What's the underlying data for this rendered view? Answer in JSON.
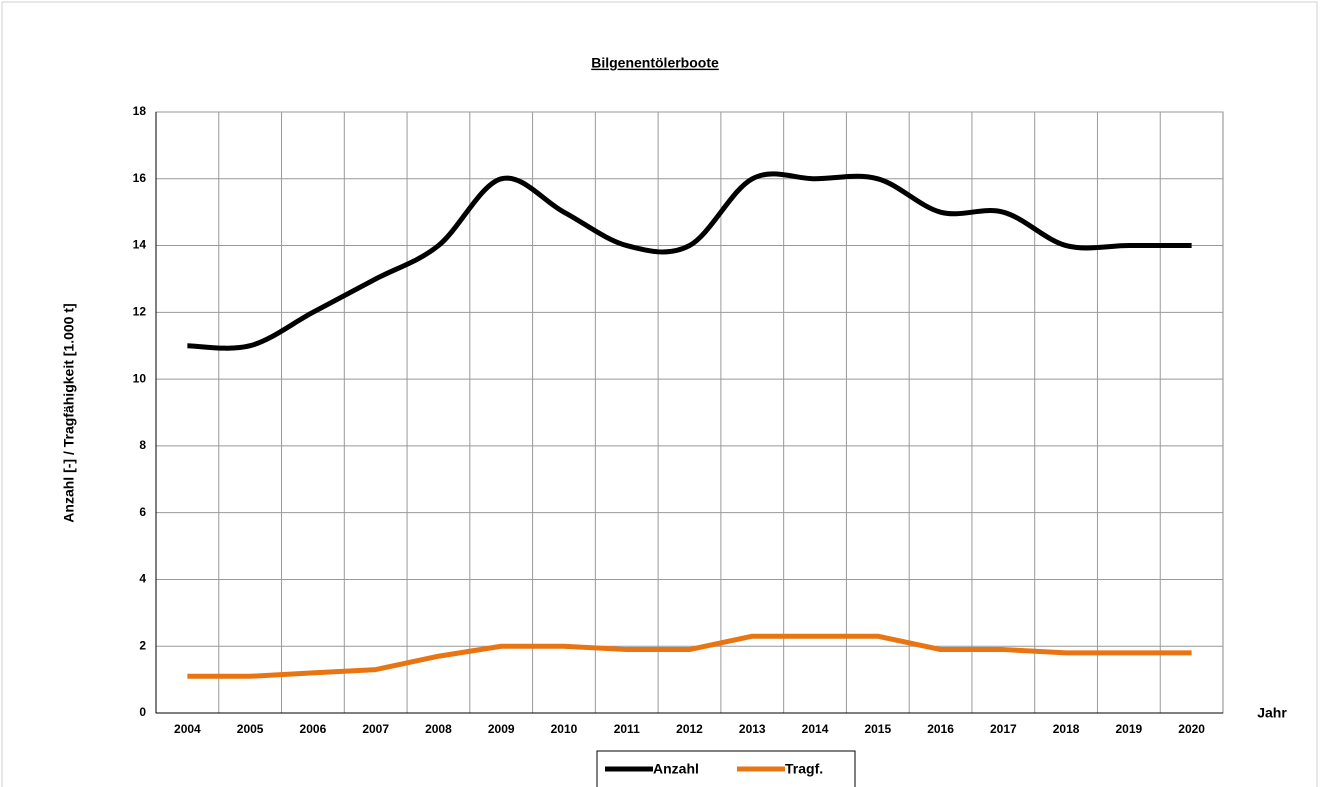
{
  "chart_data": {
    "type": "line",
    "title": "Bilgenentölerboote",
    "x_label": "Jahr",
    "y_label": "Anzahl [-] / Tragfähigkeit [1.000 t]",
    "categories": [
      "2004",
      "2005",
      "2006",
      "2007",
      "2008",
      "2009",
      "2010",
      "2011",
      "2012",
      "2013",
      "2014",
      "2015",
      "2016",
      "2017",
      "2018",
      "2019",
      "2020"
    ],
    "series": [
      {
        "name": "Anzahl",
        "color": "#000000",
        "smooth": true,
        "values": [
          11,
          11,
          12,
          13,
          14,
          16,
          15,
          14,
          14,
          16,
          16,
          16,
          15,
          15,
          14,
          14,
          14
        ]
      },
      {
        "name": "Tragf.",
        "color": "#e87511",
        "smooth": false,
        "values": [
          1.1,
          1.1,
          1.2,
          1.3,
          1.7,
          2.0,
          2.0,
          1.9,
          1.9,
          2.3,
          2.3,
          2.3,
          1.9,
          1.9,
          1.8,
          1.8,
          1.8
        ]
      }
    ],
    "ylim": [
      0,
      18
    ],
    "yticks": [
      0,
      2,
      4,
      6,
      8,
      10,
      12,
      14,
      16,
      18
    ],
    "grid": true,
    "legend": "bottom"
  }
}
